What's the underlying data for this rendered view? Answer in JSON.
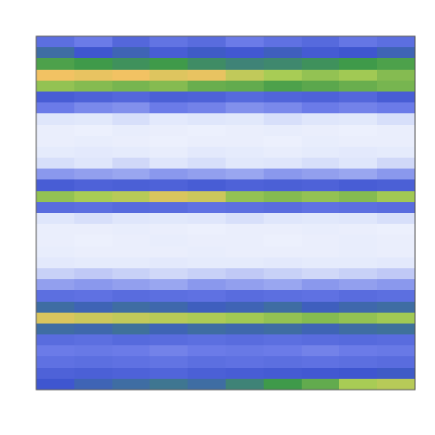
{
  "chart_data": {
    "type": "heatmap",
    "tick_labels": false,
    "zlim": [
      0,
      1
    ],
    "cells": [
      [
        0.35,
        0.3,
        0.38,
        0.33,
        0.36,
        0.3,
        0.34,
        0.37,
        0.32,
        0.35
      ],
      [
        0.5,
        0.45,
        0.48,
        0.42,
        0.46,
        0.44,
        0.47,
        0.43,
        0.45,
        0.48
      ],
      [
        0.62,
        0.6,
        0.58,
        0.6,
        0.57,
        0.55,
        0.56,
        0.58,
        0.6,
        0.62
      ],
      [
        0.9,
        0.88,
        0.9,
        0.86,
        0.88,
        0.8,
        0.75,
        0.72,
        0.74,
        0.7
      ],
      [
        0.72,
        0.7,
        0.68,
        0.7,
        0.66,
        0.65,
        0.62,
        0.64,
        0.66,
        0.68
      ],
      [
        0.42,
        0.4,
        0.38,
        0.41,
        0.4,
        0.37,
        0.39,
        0.4,
        0.38,
        0.42
      ],
      [
        0.3,
        0.28,
        0.27,
        0.3,
        0.29,
        0.27,
        0.28,
        0.3,
        0.29,
        0.3
      ],
      [
        0.15,
        0.14,
        0.16,
        0.13,
        0.15,
        0.14,
        0.16,
        0.15,
        0.14,
        0.16
      ],
      [
        0.1,
        0.09,
        0.11,
        0.1,
        0.09,
        0.1,
        0.11,
        0.1,
        0.09,
        0.1
      ],
      [
        0.1,
        0.11,
        0.1,
        0.09,
        0.1,
        0.1,
        0.09,
        0.11,
        0.1,
        0.1
      ],
      [
        0.12,
        0.13,
        0.12,
        0.11,
        0.13,
        0.12,
        0.11,
        0.12,
        0.13,
        0.12
      ],
      [
        0.16,
        0.15,
        0.17,
        0.15,
        0.16,
        0.14,
        0.15,
        0.16,
        0.15,
        0.17
      ],
      [
        0.26,
        0.25,
        0.24,
        0.26,
        0.25,
        0.24,
        0.26,
        0.25,
        0.24,
        0.26
      ],
      [
        0.42,
        0.4,
        0.41,
        0.4,
        0.42,
        0.4,
        0.41,
        0.4,
        0.42,
        0.41
      ],
      [
        0.72,
        0.75,
        0.78,
        0.85,
        0.82,
        0.72,
        0.7,
        0.72,
        0.7,
        0.74
      ],
      [
        0.36,
        0.35,
        0.37,
        0.36,
        0.34,
        0.35,
        0.36,
        0.34,
        0.35,
        0.36
      ],
      [
        0.15,
        0.16,
        0.15,
        0.14,
        0.15,
        0.16,
        0.15,
        0.14,
        0.15,
        0.16
      ],
      [
        0.1,
        0.1,
        0.11,
        0.1,
        0.09,
        0.1,
        0.1,
        0.11,
        0.1,
        0.09
      ],
      [
        0.1,
        0.09,
        0.1,
        0.11,
        0.1,
        0.1,
        0.09,
        0.1,
        0.11,
        0.1
      ],
      [
        0.11,
        0.1,
        0.1,
        0.1,
        0.11,
        0.1,
        0.1,
        0.1,
        0.11,
        0.1
      ],
      [
        0.13,
        0.12,
        0.12,
        0.13,
        0.12,
        0.12,
        0.13,
        0.12,
        0.12,
        0.13
      ],
      [
        0.18,
        0.19,
        0.18,
        0.17,
        0.18,
        0.19,
        0.18,
        0.17,
        0.18,
        0.19
      ],
      [
        0.25,
        0.26,
        0.25,
        0.24,
        0.26,
        0.25,
        0.24,
        0.26,
        0.25,
        0.26
      ],
      [
        0.35,
        0.34,
        0.36,
        0.35,
        0.34,
        0.36,
        0.35,
        0.34,
        0.36,
        0.35
      ],
      [
        0.5,
        0.48,
        0.5,
        0.49,
        0.47,
        0.48,
        0.5,
        0.47,
        0.49,
        0.5
      ],
      [
        0.85,
        0.82,
        0.8,
        0.78,
        0.76,
        0.74,
        0.72,
        0.7,
        0.72,
        0.74
      ],
      [
        0.5,
        0.49,
        0.51,
        0.48,
        0.5,
        0.49,
        0.5,
        0.48,
        0.5,
        0.51
      ],
      [
        0.36,
        0.35,
        0.37,
        0.36,
        0.35,
        0.36,
        0.35,
        0.36,
        0.37,
        0.36
      ],
      [
        0.3,
        0.31,
        0.3,
        0.29,
        0.3,
        0.31,
        0.3,
        0.29,
        0.3,
        0.31
      ],
      [
        0.34,
        0.35,
        0.34,
        0.33,
        0.35,
        0.34,
        0.35,
        0.34,
        0.35,
        0.36
      ],
      [
        0.4,
        0.41,
        0.4,
        0.39,
        0.41,
        0.42,
        0.43,
        0.44,
        0.45,
        0.46
      ],
      [
        0.45,
        0.48,
        0.5,
        0.52,
        0.5,
        0.55,
        0.6,
        0.65,
        0.75,
        0.78
      ]
    ]
  }
}
